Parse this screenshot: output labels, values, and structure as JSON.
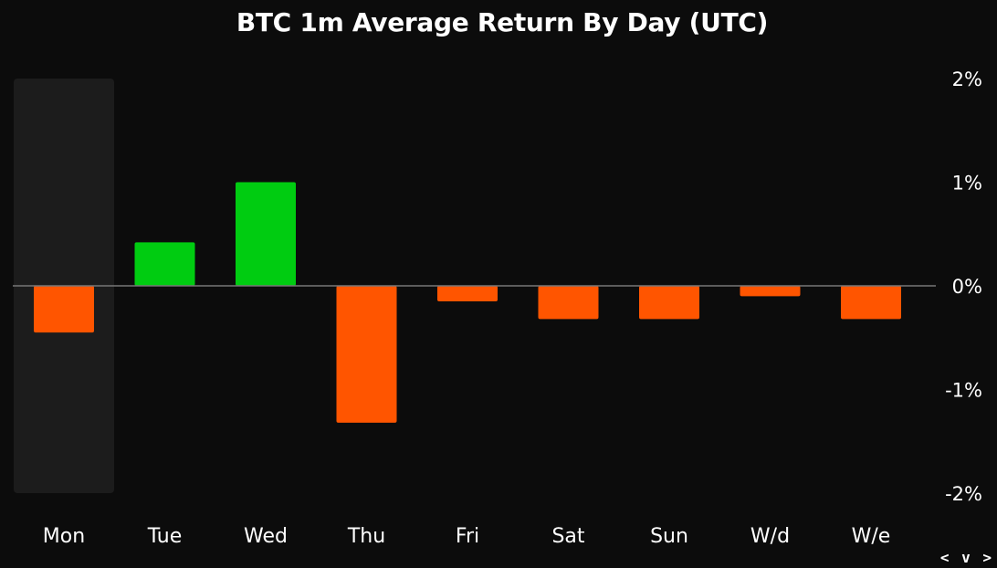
{
  "chart_data": {
    "type": "bar",
    "title": "BTC 1m Average Return By Day (UTC)",
    "xlabel": "",
    "ylabel": "",
    "categories": [
      "Mon",
      "Tue",
      "Wed",
      "Thu",
      "Fri",
      "Sat",
      "Sun",
      "W/d",
      "W/e"
    ],
    "values": [
      -0.45,
      0.42,
      1.0,
      -1.32,
      -0.15,
      -0.32,
      -0.32,
      -0.1,
      -0.32
    ],
    "ylim": [
      -2,
      2
    ],
    "yticks": [
      2,
      1,
      0,
      -1,
      -2
    ],
    "ytick_labels": [
      "2%",
      "1%",
      "0%",
      "-1%",
      "-2%"
    ],
    "y_axis_position": "right",
    "grid": false,
    "highlighted_category": "Mon",
    "colors": {
      "positive": "#00cc11",
      "negative": "#ff5500",
      "highlight": "#1c1c1c",
      "zero_line": "#777777",
      "background": "#0c0c0c",
      "text": "#ffffff"
    }
  },
  "nav": {
    "arrows": "< v >"
  }
}
